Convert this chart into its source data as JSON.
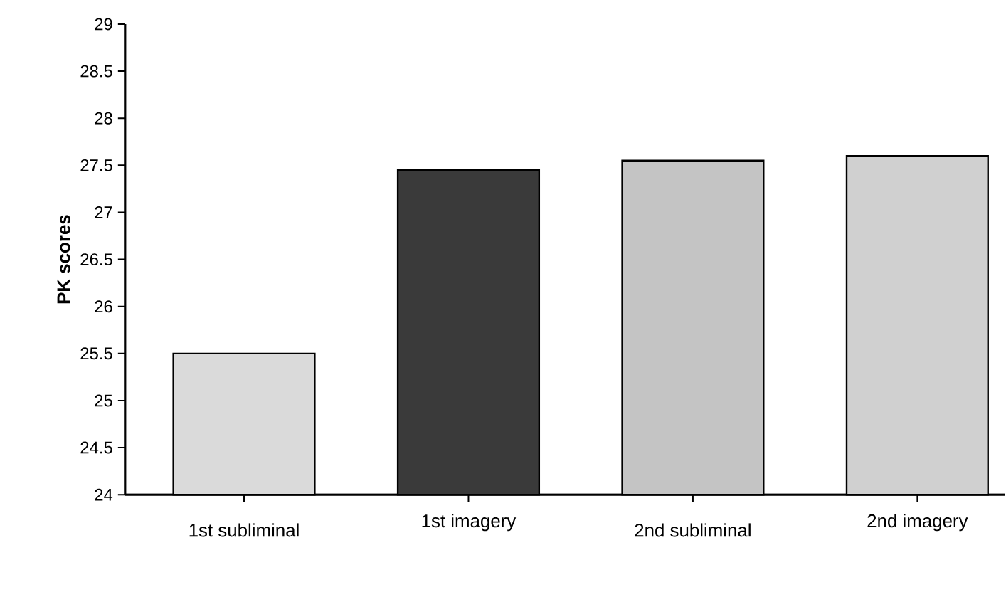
{
  "chart_data": {
    "type": "bar",
    "ylabel": "PK scores",
    "categories": [
      "1st subliminal",
      "1st imagery",
      "2nd subliminal",
      "2nd imagery"
    ],
    "values": [
      25.5,
      27.45,
      27.55,
      27.6
    ],
    "colors": [
      "#dadada",
      "#3a3a3a",
      "#c4c4c4",
      "#d0d0d0"
    ],
    "ylim": [
      24,
      29
    ],
    "yticks": [
      24,
      24.5,
      25,
      25.5,
      26,
      26.5,
      27,
      27.5,
      28,
      28.5,
      29
    ]
  }
}
